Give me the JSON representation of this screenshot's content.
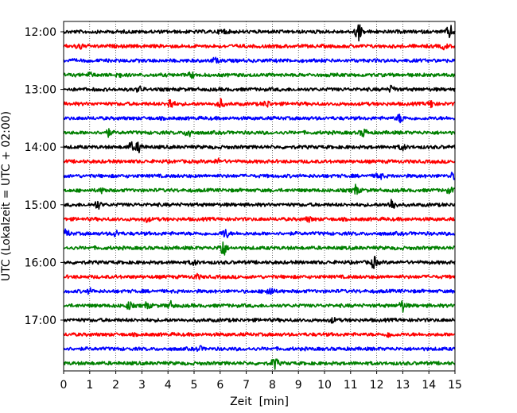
{
  "chart_data": {
    "type": "line",
    "title": "",
    "xlabel": "Zeit  [min]",
    "ylabel": "UTC (Lokalzeit = UTC + 02:00)",
    "xlim": [
      0,
      15
    ],
    "x_ticks": [
      0,
      1,
      2,
      3,
      4,
      5,
      6,
      7,
      8,
      9,
      10,
      11,
      12,
      13,
      14,
      15
    ],
    "y_tick_labels": [
      "12:00",
      "13:00",
      "14:00",
      "15:00",
      "16:00",
      "17:00"
    ],
    "grid": "vertical dotted at each minute",
    "trace_interval_minutes": 15,
    "series_colors_cycle": [
      "#000000",
      "#ff0000",
      "#0000ff",
      "#008000"
    ],
    "traces": [
      {
        "start": "12:00",
        "color": "#000000",
        "events": [
          [
            11.3,
            2.6
          ],
          [
            14.8,
            1.8
          ],
          [
            6.1,
            0.8
          ]
        ]
      },
      {
        "start": "12:15",
        "color": "#ff0000",
        "events": [
          [
            0.6,
            0.9
          ],
          [
            14.6,
            0.7
          ]
        ]
      },
      {
        "start": "12:30",
        "color": "#0000ff",
        "events": [
          [
            5.8,
            0.6
          ]
        ]
      },
      {
        "start": "12:45",
        "color": "#008000",
        "events": [
          [
            1.0,
            0.6
          ],
          [
            2.1,
            0.6
          ],
          [
            4.9,
            0.7
          ]
        ]
      },
      {
        "start": "13:00",
        "color": "#000000",
        "events": [
          [
            2.9,
            0.7
          ],
          [
            12.6,
            1.0
          ]
        ]
      },
      {
        "start": "13:15",
        "color": "#ff0000",
        "events": [
          [
            4.1,
            1.5
          ],
          [
            6.0,
            1.3
          ],
          [
            7.8,
            0.9
          ],
          [
            14.1,
            1.0
          ]
        ]
      },
      {
        "start": "13:30",
        "color": "#0000ff",
        "events": [
          [
            12.9,
            1.2
          ]
        ]
      },
      {
        "start": "13:45",
        "color": "#008000",
        "events": [
          [
            1.7,
            1.0
          ],
          [
            4.8,
            1.3
          ],
          [
            11.5,
            1.1
          ]
        ]
      },
      {
        "start": "14:00",
        "color": "#000000",
        "events": [
          [
            2.6,
            1.2
          ],
          [
            2.9,
            1.5
          ],
          [
            13.0,
            0.8
          ]
        ]
      },
      {
        "start": "14:15",
        "color": "#ff0000",
        "events": [
          [
            5.9,
            0.6
          ]
        ]
      },
      {
        "start": "14:30",
        "color": "#0000ff",
        "events": [
          [
            12.1,
            0.9
          ],
          [
            14.9,
            0.8
          ]
        ]
      },
      {
        "start": "14:45",
        "color": "#008000",
        "events": [
          [
            11.2,
            1.4
          ],
          [
            1.5,
            0.6
          ],
          [
            14.8,
            0.7
          ]
        ]
      },
      {
        "start": "15:00",
        "color": "#000000",
        "events": [
          [
            1.3,
            1.1
          ],
          [
            12.6,
            1.8
          ]
        ]
      },
      {
        "start": "15:15",
        "color": "#ff0000",
        "events": [
          [
            3.2,
            0.6
          ],
          [
            9.4,
            0.6
          ]
        ]
      },
      {
        "start": "15:30",
        "color": "#0000ff",
        "events": [
          [
            0.1,
            1.0
          ],
          [
            2.0,
            0.8
          ],
          [
            6.2,
            1.3
          ]
        ]
      },
      {
        "start": "15:45",
        "color": "#008000",
        "events": [
          [
            6.1,
            2.8
          ]
        ]
      },
      {
        "start": "16:00",
        "color": "#000000",
        "events": [
          [
            5.0,
            0.6
          ],
          [
            11.9,
            1.6
          ]
        ]
      },
      {
        "start": "16:15",
        "color": "#ff0000",
        "events": [
          [
            5.1,
            0.6
          ]
        ]
      },
      {
        "start": "16:30",
        "color": "#0000ff",
        "events": [
          [
            7.9,
            1.5
          ],
          [
            1.0,
            0.6
          ]
        ]
      },
      {
        "start": "16:45",
        "color": "#008000",
        "events": [
          [
            2.5,
            1.0
          ],
          [
            3.2,
            0.8
          ],
          [
            4.1,
            1.0
          ],
          [
            13.0,
            1.6
          ]
        ]
      },
      {
        "start": "17:00",
        "color": "#000000",
        "events": [
          [
            10.3,
            0.6
          ]
        ]
      },
      {
        "start": "17:15",
        "color": "#ff0000",
        "events": [
          [
            12.5,
            0.7
          ]
        ]
      },
      {
        "start": "17:30",
        "color": "#0000ff",
        "events": [
          [
            5.2,
            0.6
          ]
        ]
      },
      {
        "start": "17:45",
        "color": "#008000",
        "events": [
          [
            8.1,
            1.6
          ]
        ]
      }
    ]
  }
}
